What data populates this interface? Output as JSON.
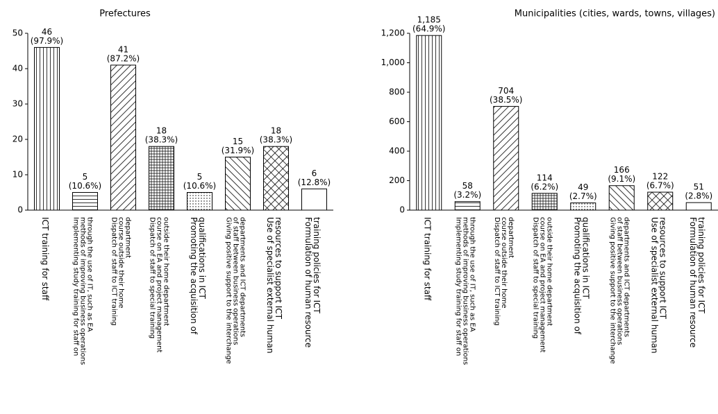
{
  "chart_data": [
    {
      "type": "bar",
      "title": "Prefectures",
      "categories": [
        [
          "ICT training  for staff"
        ],
        [
          "Implementing study training for staff on",
          "methods of improving business operations",
          "through the use of IT, such as EA"
        ],
        [
          "Dispatch of staff to ICT training",
          "course outside their home",
          "department"
        ],
        [
          "Dispatch of staff to special training",
          "course on EA and project management",
          "outside their home department"
        ],
        [
          "Promoting the acquisition of",
          "qualifications in ICT"
        ],
        [
          "Giving positive support to the interchange",
          "of staff between business operations",
          "departments and ICT departments"
        ],
        [
          "Use of specialist external human",
          "resources to support ICT"
        ],
        [
          "Formulation of human resource",
          "training policies for ICT"
        ]
      ],
      "values": [
        46,
        5,
        41,
        18,
        5,
        15,
        18,
        6
      ],
      "share_labels": [
        "(97.9%)",
        "(10.6%)",
        "(87.2%)",
        "(38.3%)",
        "(10.6%)",
        "(31.9%)",
        "(38.3%)",
        "(12.8%)"
      ],
      "patterns": [
        "vertical",
        "horizontal",
        "backslash",
        "grid",
        "dots",
        "slash",
        "crosshatch",
        "none"
      ],
      "color": "#000000",
      "ylim": [
        0,
        50
      ],
      "yticks": [
        0,
        10,
        20,
        30,
        40,
        50
      ]
    },
    {
      "type": "bar",
      "title": "Municipalities (cities, wards, towns, villages)",
      "categories": [
        [
          "ICT training  for staff"
        ],
        [
          "Implementing study training for staff on",
          "methods of improving business operations",
          "through the use of IT, such as EA"
        ],
        [
          "Dispatch of staff to ICT training",
          "course outside their home",
          "department"
        ],
        [
          "Dispatch of staff to special training",
          "course on EA and project management",
          "outside their home department"
        ],
        [
          "Promoting the acquisition of",
          "qualifications in ICT"
        ],
        [
          "Giving positive support to the interchange",
          "of staff between business operations",
          "departments and ICT departments"
        ],
        [
          "Use of specialist external human",
          "resources to support ICT"
        ],
        [
          "Formulation of human resource",
          "training policies for ICT"
        ]
      ],
      "values": [
        1185,
        58,
        704,
        114,
        49,
        166,
        122,
        51
      ],
      "value_labels": [
        "1,185",
        "58",
        "704",
        "114",
        "49",
        "166",
        "122",
        "51"
      ],
      "share_labels": [
        "(64.9%)",
        "(3.2%)",
        "(38.5%)",
        "(6.2%)",
        "(2.7%)",
        "(9.1%)",
        "(6.7%)",
        "(2.8%)"
      ],
      "patterns": [
        "vertical",
        "horizontal",
        "backslash",
        "grid",
        "dots",
        "slash",
        "crosshatch",
        "none"
      ],
      "color": "#000000",
      "ylim": [
        0,
        1200
      ],
      "yticks": [
        0,
        200,
        400,
        600,
        800,
        {
          "value": 1000,
          "label": "1,000"
        },
        {
          "value": 1200,
          "label": "1,200"
        }
      ]
    }
  ]
}
